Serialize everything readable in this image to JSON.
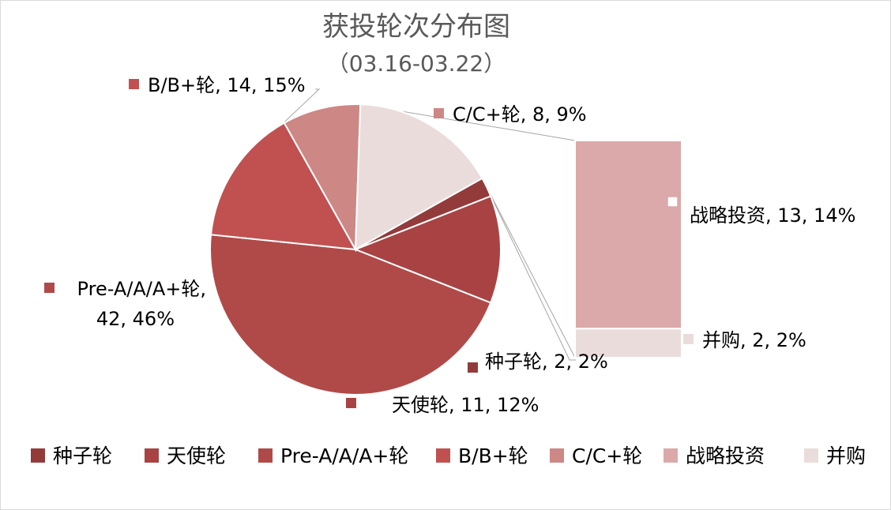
{
  "chart_data": {
    "type": "pie",
    "subtype": "bar-of-pie",
    "title": "获投轮次分布图",
    "subtitle": "（03.16-03.22）",
    "categories": [
      "种子轮",
      "天使轮",
      "Pre-A/A/A+轮",
      "B/B+轮",
      "C/C+轮",
      "战略投资",
      "并购"
    ],
    "values": [
      2,
      11,
      42,
      14,
      8,
      13,
      2
    ],
    "percentages": [
      "2%",
      "12%",
      "46%",
      "15%",
      "9%",
      "14%",
      "2%"
    ],
    "data_labels": [
      "种子轮, 2, 2%",
      "天使轮, 11, 12%",
      "Pre-A/A/A+轮, 42, 46%",
      "B/B+轮, 14, 15%",
      "C/C+轮, 8, 9%",
      "战略投资, 13, 14%",
      "并购, 2, 2%"
    ],
    "pie_categories": [
      "种子轮",
      "天使轮",
      "Pre-A/A/A+轮",
      "B/B+轮",
      "C/C+轮"
    ],
    "bar_categories": [
      "战略投资",
      "并购"
    ],
    "colors": [
      "#933b3b",
      "#a94343",
      "#b04a48",
      "#c05150",
      "#cd8785",
      "#dba9a9",
      "#ebdcdc"
    ],
    "legend_position": "bottom",
    "grid": false
  }
}
